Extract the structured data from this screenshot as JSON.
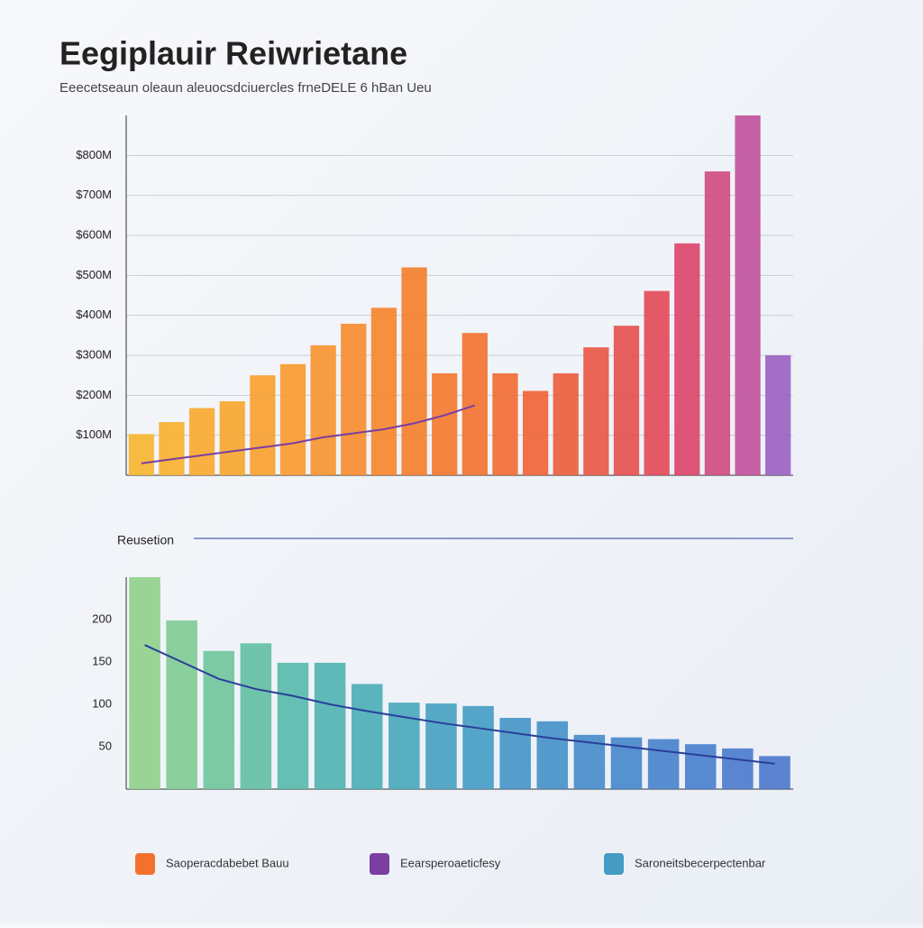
{
  "header": {
    "title": "Eegiplauir Reiwrietane",
    "subtitle": "Eeecetseaun oleaun aleuocsdciuercles frneDELE 6 hBan Ueu"
  },
  "chart_data": [
    {
      "type": "bar",
      "ylim": [
        0,
        900
      ],
      "yticks": [
        {
          "value": 100,
          "label": "$100M"
        },
        {
          "value": 200,
          "label": "$200M"
        },
        {
          "value": 300,
          "label": "$300M"
        },
        {
          "value": 400,
          "label": "$400M"
        },
        {
          "value": 500,
          "label": "$500M"
        },
        {
          "value": 600,
          "label": "$600M"
        },
        {
          "value": 700,
          "label": "$700M"
        },
        {
          "value": 800,
          "label": "$800M"
        }
      ],
      "grid": true,
      "categories": [
        null,
        null,
        null,
        null,
        null,
        null,
        null,
        null,
        null,
        null,
        null,
        null,
        null,
        null,
        null,
        null,
        null,
        null,
        null,
        null,
        null,
        null
      ],
      "series": [
        {
          "name": "Saoperacdabebet Bauu",
          "colors": [
            "#f7b52c",
            "#f7b02c",
            "#f8aa2c",
            "#f8a52c",
            "#f89f2c",
            "#f8992c",
            "#f7922b",
            "#f78b2b",
            "#f6852a",
            "#f57e2a",
            "#f4782b",
            "#f3712d",
            "#f16a30",
            "#ef6334",
            "#ec5c3a",
            "#e95542",
            "#e64e4c",
            "#e24858",
            "#dc4468",
            "#cf4a80",
            "#c0509a",
            "#9a5fc0"
          ],
          "values": [
            103,
            133,
            168,
            185,
            250,
            278,
            325,
            379,
            419,
            520,
            255,
            356,
            255,
            211,
            255,
            320,
            374,
            461,
            580,
            760,
            900,
            300
          ]
        },
        {
          "name": "Eearsperoaeticfesy",
          "type": "line",
          "color": "#7a3fa0",
          "values": [
            30,
            40,
            50,
            60,
            70,
            80,
            95,
            105,
            115,
            130,
            150,
            175,
            null,
            null,
            null,
            null,
            null,
            null,
            null,
            null,
            null,
            null
          ]
        }
      ]
    },
    {
      "type": "bar",
      "ylim": [
        0,
        250
      ],
      "yticks": [
        50,
        100,
        150,
        200
      ],
      "grid": false,
      "categories": [
        null,
        null,
        null,
        null,
        null,
        null,
        null,
        null,
        null,
        null,
        null,
        null,
        null,
        null,
        null,
        null,
        null,
        null
      ],
      "series": [
        {
          "name": "Saroneitsbecerpectenbar",
          "colors": [
            "#8fd08a",
            "#7ecb92",
            "#6fc59b",
            "#62bfa3",
            "#57b9aa",
            "#4fb3b0",
            "#4aadb6",
            "#47a7bb",
            "#45a1c0",
            "#449bc3",
            "#4495c6",
            "#4490c8",
            "#458bca",
            "#4686cb",
            "#4782cc",
            "#487ecd",
            "#4a7acd",
            "#4b77cd"
          ],
          "values": [
            250,
            199,
            163,
            172,
            149,
            149,
            124,
            102,
            101,
            98,
            84,
            80,
            64,
            61,
            59,
            53,
            48,
            39
          ]
        },
        {
          "name": "Reusetion",
          "type": "line",
          "color": "#2a3f9a",
          "values": [
            170,
            150,
            130,
            118,
            110,
            100,
            92,
            85,
            78,
            72,
            66,
            60,
            55,
            50,
            45,
            40,
            35,
            30
          ]
        }
      ]
    }
  ]
}
